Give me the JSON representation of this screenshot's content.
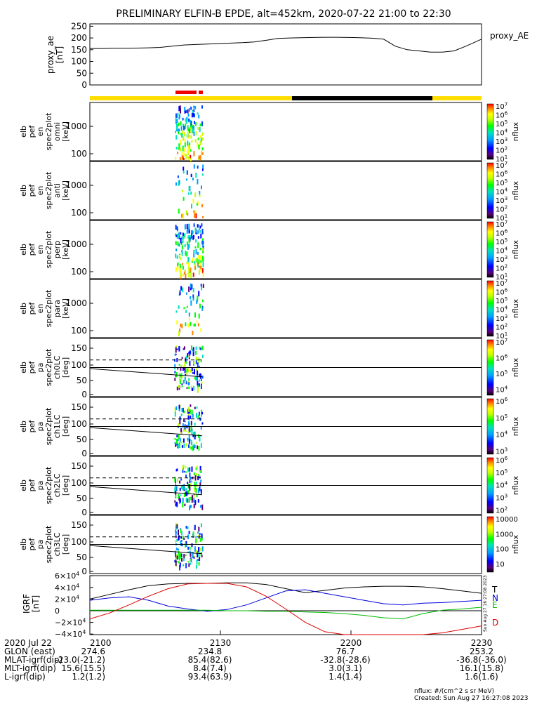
{
  "title": "PRELIMINARY ELFIN-B EPDE, alt=452km, 2020-07-22 21:00 to 22:30",
  "colors": {
    "yellow": "#ffdd00",
    "black": "#000000",
    "red": "#ee0000",
    "blue": "#0000dd",
    "green": "#00bb00"
  },
  "chart_data": [
    {
      "type": "line",
      "id": "proxy_ae",
      "ylabel": [
        "proxy_ae",
        "[nT]"
      ],
      "legend": "proxy_AE",
      "ylim": [
        0,
        260
      ],
      "yticks": [
        "250",
        "200",
        "150",
        "100",
        "50",
        "0"
      ],
      "ytick_values": [
        250,
        200,
        150,
        100,
        50,
        0
      ],
      "x": [
        0,
        0.03,
        0.06,
        0.09,
        0.12,
        0.15,
        0.18,
        0.21,
        0.24,
        0.27,
        0.3,
        0.33,
        0.36,
        0.39,
        0.42,
        0.45,
        0.48,
        0.51,
        0.54,
        0.57,
        0.6,
        0.63,
        0.66,
        0.69,
        0.72,
        0.75,
        0.78,
        0.81,
        0.84,
        0.87,
        0.9,
        0.93,
        0.96,
        1.0
      ],
      "values": [
        155,
        155,
        156,
        156,
        157,
        158,
        160,
        165,
        170,
        172,
        174,
        176,
        178,
        180,
        183,
        190,
        198,
        200,
        201,
        202,
        203,
        203,
        202,
        201,
        199,
        195,
        165,
        150,
        145,
        140,
        140,
        145,
        165,
        195
      ]
    },
    {
      "type": "heatmap",
      "id": "omni",
      "ylabel": [
        "elb",
        "pef",
        "en",
        "spec2plot",
        "omni",
        "[keV]"
      ],
      "yticks": [
        "1000",
        "100"
      ],
      "colorbar_ticks": [
        "10^7",
        "10^6",
        "10^5",
        "10^4",
        "10^3",
        "10^2",
        "10^1"
      ],
      "colorbar_label": "nflux"
    },
    {
      "type": "heatmap",
      "id": "anti",
      "ylabel": [
        "elb",
        "pef",
        "en",
        "spec2plot",
        "anti",
        "[keV]"
      ],
      "yticks": [
        "1000",
        "100"
      ],
      "colorbar_ticks": [
        "10^7",
        "10^6",
        "10^5",
        "10^4",
        "10^3",
        "10^2",
        "10^1"
      ],
      "colorbar_label": "nflux"
    },
    {
      "type": "heatmap",
      "id": "perp",
      "ylabel": [
        "elb",
        "pef",
        "en",
        "spec2plot",
        "perp",
        "[keV]"
      ],
      "yticks": [
        "1000",
        "100"
      ],
      "colorbar_ticks": [
        "10^7",
        "10^6",
        "10^5",
        "10^4",
        "10^3",
        "10^2",
        "10^1"
      ],
      "colorbar_label": "nflux"
    },
    {
      "type": "heatmap",
      "id": "para",
      "ylabel": [
        "elb",
        "pef",
        "en",
        "spec2plot",
        "para",
        "[keV]"
      ],
      "yticks": [
        "1000",
        "100"
      ],
      "colorbar_ticks": [
        "10^7",
        "10^6",
        "10^5",
        "10^4",
        "10^3",
        "10^2",
        "10^1"
      ],
      "colorbar_label": "nflux"
    },
    {
      "type": "heatmap",
      "id": "ch0LC",
      "ylabel": [
        "elb",
        "pef",
        "pa",
        "spec2plot",
        "ch0LC",
        "[deg]"
      ],
      "yticks": [
        "150",
        "100",
        "50",
        "0"
      ],
      "colorbar_ticks": [
        "10^7",
        "10^6",
        "10^5",
        "10^4"
      ],
      "colorbar_label": "nflux"
    },
    {
      "type": "heatmap",
      "id": "ch1LC",
      "ylabel": [
        "elb",
        "pef",
        "pa",
        "spec2plot",
        "ch1LC",
        "[deg]"
      ],
      "yticks": [
        "150",
        "100",
        "50",
        "0"
      ],
      "colorbar_ticks": [
        "10^6",
        "10^5",
        "10^4",
        "10^3"
      ],
      "colorbar_label": "nflux"
    },
    {
      "type": "heatmap",
      "id": "ch2LC",
      "ylabel": [
        "elb",
        "pef",
        "pa",
        "spec2plot",
        "ch2LC",
        "[deg]"
      ],
      "yticks": [
        "150",
        "100",
        "50",
        "0"
      ],
      "colorbar_ticks": [
        "10^6",
        "10^5",
        "10^4",
        "10^3",
        "10^2"
      ],
      "colorbar_label": "nflux"
    },
    {
      "type": "heatmap",
      "id": "ch3LC",
      "ylabel": [
        "elb",
        "pef",
        "pa",
        "spec2plot",
        "ch3LC",
        "[deg]"
      ],
      "yticks": [
        "150",
        "100",
        "50",
        "0"
      ],
      "colorbar_ticks": [
        "10000",
        "1000",
        "100",
        "10"
      ],
      "colorbar_label": "nflux"
    },
    {
      "type": "line",
      "id": "igrf",
      "ylabel": [
        "IGRF",
        "[nT]"
      ],
      "yticks": [
        "6×10^4",
        "4×10^4",
        "2×10^4",
        "0",
        "−2×10^4",
        "−4×10^4"
      ],
      "legend": [
        "T",
        "N",
        "E",
        "D"
      ],
      "side_text": "Sun Aug 27 16:27:08 2023",
      "ylim": [
        -40000,
        60000
      ],
      "x": [
        0,
        0.05,
        0.1,
        0.15,
        0.2,
        0.25,
        0.3,
        0.35,
        0.4,
        0.45,
        0.5,
        0.55,
        0.6,
        0.65,
        0.7,
        0.75,
        0.8,
        0.85,
        0.9,
        0.95,
        1.0
      ],
      "series": [
        {
          "name": "T",
          "values": [
            20000,
            28000,
            36000,
            43000,
            46000,
            47000,
            47000,
            48000,
            48000,
            45000,
            38000,
            31000,
            35000,
            39000,
            41000,
            42000,
            42000,
            41000,
            38000,
            34000,
            30000
          ]
        },
        {
          "name": "N",
          "values": [
            18000,
            22000,
            24000,
            18000,
            8000,
            3000,
            -1000,
            2000,
            10000,
            22000,
            34000,
            36000,
            30000,
            24000,
            18000,
            12000,
            10000,
            13000,
            14000,
            16000,
            18000
          ]
        },
        {
          "name": "E",
          "values": [
            1000,
            1000,
            1000,
            1000,
            1000,
            1000,
            1000,
            0,
            0,
            -1000,
            -1000,
            -2000,
            -3000,
            -5000,
            -8000,
            -12000,
            -14000,
            -5000,
            1000,
            3000,
            6000
          ]
        },
        {
          "name": "D",
          "values": [
            -14000,
            -4000,
            10000,
            25000,
            38000,
            46000,
            47000,
            47000,
            41000,
            25000,
            3000,
            -20000,
            -36000,
            -42000,
            -43000,
            -43000,
            -43000,
            -42000,
            -38000,
            -32000,
            -26000
          ]
        }
      ]
    }
  ],
  "time_axis": {
    "label": "2020 Jul 22",
    "ticks": [
      "2100",
      "2130",
      "2200",
      "2230"
    ]
  },
  "ephemeris": [
    {
      "label": "GLON (east)",
      "values": [
        "274.6",
        "234.8",
        "76.7",
        "253.2"
      ]
    },
    {
      "label": "MLAT-igrf(dip)",
      "values": [
        "-23.0(-21.2)",
        "85.4(82.6)",
        "-32.8(-28.6)",
        "-36.8(-36.0)"
      ]
    },
    {
      "label": "MLT-igrf(dip)",
      "values": [
        "15.6(15.5)",
        "8.4(7.4)",
        "3.0(3.1)",
        "16.1(15.8)"
      ]
    },
    {
      "label": "L-igrf(dip)",
      "values": [
        "1.2(1.2)",
        "93.4(63.9)",
        "1.4(1.4)",
        "1.6(1.6)"
      ]
    }
  ],
  "footer": {
    "units": "nflux: #/(cm^2 s sr MeV)",
    "created": "Created: Sun Aug 27 16:27:08 2023"
  }
}
